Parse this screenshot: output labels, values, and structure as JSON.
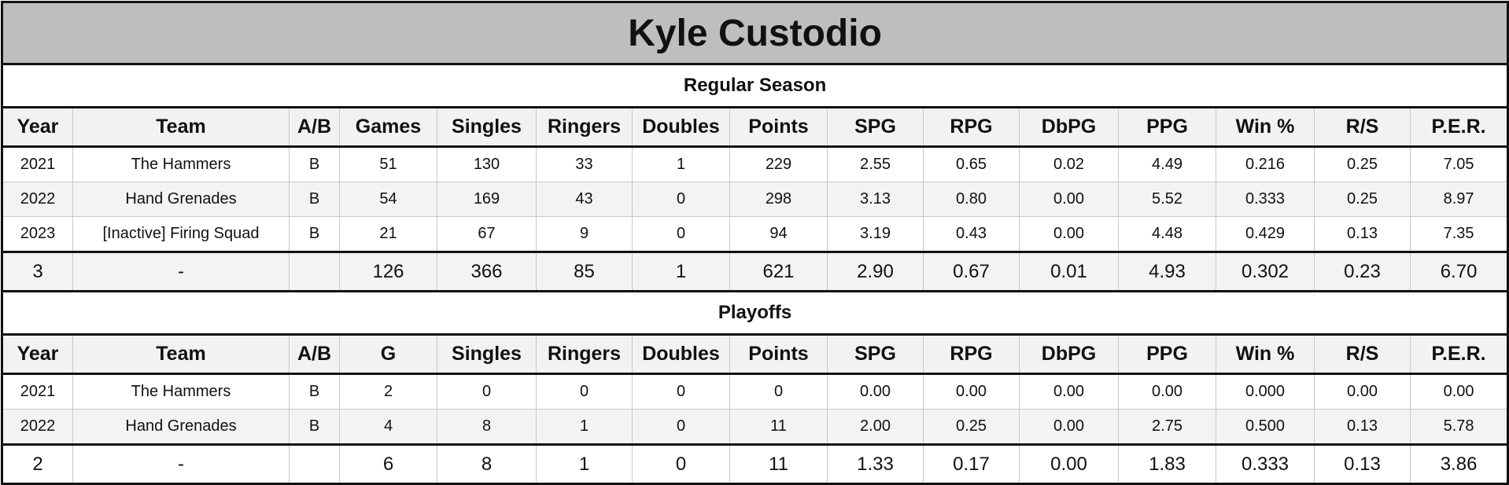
{
  "title": "Kyle Custodio",
  "regular": {
    "label": "Regular Season",
    "headers": [
      "Year",
      "Team",
      "A/B",
      "Games",
      "Singles",
      "Ringers",
      "Doubles",
      "Points",
      "SPG",
      "RPG",
      "DbPG",
      "PPG",
      "Win %",
      "R/S",
      "P.E.R."
    ],
    "rows": [
      [
        "2021",
        "The Hammers",
        "B",
        "51",
        "130",
        "33",
        "1",
        "229",
        "2.55",
        "0.65",
        "0.02",
        "4.49",
        "0.216",
        "0.25",
        "7.05"
      ],
      [
        "2022",
        "Hand Grenades",
        "B",
        "54",
        "169",
        "43",
        "0",
        "298",
        "3.13",
        "0.80",
        "0.00",
        "5.52",
        "0.333",
        "0.25",
        "8.97"
      ],
      [
        "2023",
        "[Inactive] Firing Squad",
        "B",
        "21",
        "67",
        "9",
        "0",
        "94",
        "3.19",
        "0.43",
        "0.00",
        "4.48",
        "0.429",
        "0.13",
        "7.35"
      ]
    ],
    "total": [
      "3",
      "-",
      "",
      "126",
      "366",
      "85",
      "1",
      "621",
      "2.90",
      "0.67",
      "0.01",
      "4.93",
      "0.302",
      "0.23",
      "6.70"
    ]
  },
  "playoffs": {
    "label": "Playoffs",
    "headers": [
      "Year",
      "Team",
      "A/B",
      "G",
      "Singles",
      "Ringers",
      "Doubles",
      "Points",
      "SPG",
      "RPG",
      "DbPG",
      "PPG",
      "Win %",
      "R/S",
      "P.E.R."
    ],
    "rows": [
      [
        "2021",
        "The Hammers",
        "B",
        "2",
        "0",
        "0",
        "0",
        "0",
        "0.00",
        "0.00",
        "0.00",
        "0.00",
        "0.000",
        "0.00",
        "0.00"
      ],
      [
        "2022",
        "Hand Grenades",
        "B",
        "4",
        "8",
        "1",
        "0",
        "11",
        "2.00",
        "0.25",
        "0.00",
        "2.75",
        "0.500",
        "0.13",
        "5.78"
      ]
    ],
    "total": [
      "2",
      "-",
      "",
      "6",
      "8",
      "1",
      "0",
      "11",
      "1.33",
      "0.17",
      "0.00",
      "1.83",
      "0.333",
      "0.13",
      "3.86"
    ]
  }
}
